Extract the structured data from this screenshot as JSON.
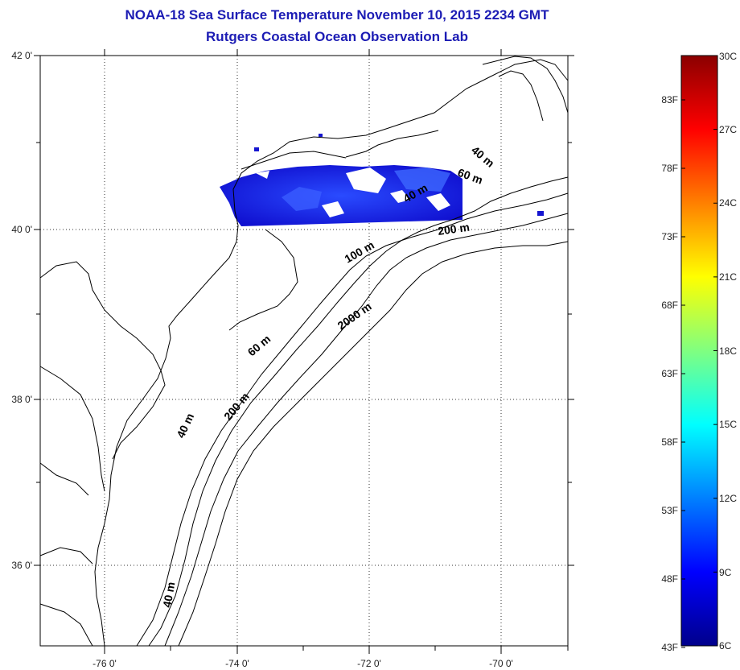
{
  "title": "NOAA-18 Sea Surface Temperature November 10, 2015 2234 GMT",
  "subtitle": "Rutgers Coastal Ocean Observation Lab",
  "map": {
    "lon_range": [
      -77,
      -69
    ],
    "lat_range": [
      35,
      42
    ],
    "lat_labels": [
      "42 0'",
      "40 0'",
      "38 0'",
      "36 0'"
    ],
    "lon_labels": [
      "-76 0'",
      "-74 0'",
      "-72 0'",
      "-70 0'"
    ],
    "gridlines": true,
    "contour_labels": [
      "40 m",
      "60 m",
      "40 m",
      "200 m",
      "100 m",
      "2000 m",
      "60 m",
      "40 m",
      "200 m",
      "40 m"
    ]
  },
  "colorbar": {
    "f_labels": [
      "83F",
      "78F",
      "73F",
      "68F",
      "63F",
      "58F",
      "53F",
      "48F",
      "43F"
    ],
    "c_labels": [
      "30C",
      "27C",
      "24C",
      "21C",
      "18C",
      "15C",
      "12C",
      "9C",
      "6C"
    ],
    "colors": [
      "#00008b",
      "#0000ff",
      "#0080ff",
      "#00ffff",
      "#80ff80",
      "#ffff00",
      "#ff8000",
      "#ff0000",
      "#8b0000"
    ]
  }
}
